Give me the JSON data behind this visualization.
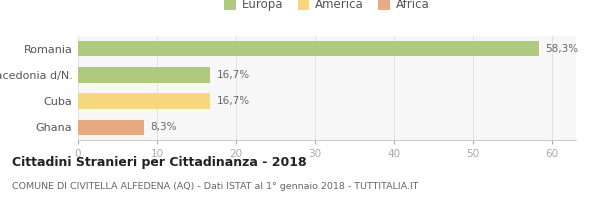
{
  "categories": [
    "Ghana",
    "Cuba",
    "Macedonia d/N.",
    "Romania"
  ],
  "values": [
    8.3,
    16.7,
    16.7,
    58.3
  ],
  "labels": [
    "8,3%",
    "16,7%",
    "16,7%",
    "58,3%"
  ],
  "colors": [
    "#e8aa82",
    "#f5d87e",
    "#afc97e",
    "#afc97e"
  ],
  "legend": [
    {
      "label": "Europa",
      "color": "#afc97e"
    },
    {
      "label": "America",
      "color": "#f5d87e"
    },
    {
      "label": "Africa",
      "color": "#e8aa82"
    }
  ],
  "xlim": [
    0,
    63
  ],
  "xticks": [
    0,
    10,
    20,
    30,
    40,
    50,
    60
  ],
  "title": "Cittadini Stranieri per Cittadinanza - 2018",
  "subtitle": "COMUNE DI CIVITELLA ALFEDENA (AQ) - Dati ISTAT al 1° gennaio 2018 - TUTTITALIA.IT",
  "background_color": "#ffffff",
  "bar_background": "#f7f7f7"
}
